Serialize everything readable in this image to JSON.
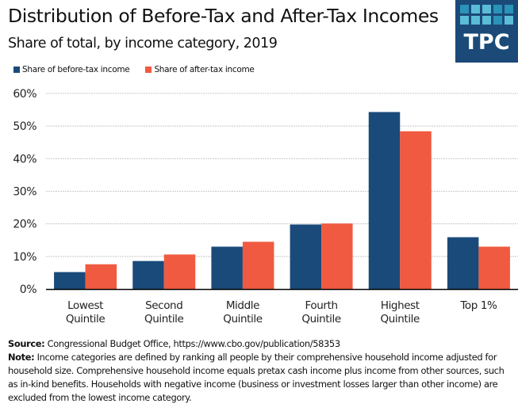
{
  "header": {
    "title": "Distribution of Before-Tax and After-Tax Incomes",
    "subtitle": "Share of total, by income category, 2019"
  },
  "logo": {
    "text": "TPC",
    "icon": "tpc-grid-logo",
    "background": "#1b4a78",
    "tile_colors": [
      "#2a93b8",
      "#5bbcd8",
      "#5bbcd8",
      "#2a93b8",
      "#2a93b8",
      "#5bbcd8",
      "#5bbcd8",
      "#5bbcd8",
      "#2a93b8",
      "#5bbcd8"
    ]
  },
  "colors": {
    "before_tax": "#1a4a7a",
    "after_tax": "#f05a40",
    "grid": "#c8c8c8",
    "axis": "#000000"
  },
  "chart_data": {
    "type": "bar",
    "title": "Distribution of Before-Tax and After-Tax Incomes",
    "subtitle": "Share of total, by income category, 2019",
    "xlabel": "",
    "ylabel": "",
    "categories": [
      "Lowest Quintile",
      "Second Quintile",
      "Middle Quintile",
      "Fourth Quintile",
      "Highest Quintile",
      "Top 1%"
    ],
    "category_lines": [
      [
        "Lowest",
        "Quintile"
      ],
      [
        "Second",
        "Quintile"
      ],
      [
        "Middle",
        "Quintile"
      ],
      [
        "Fourth",
        "Quintile"
      ],
      [
        "Highest",
        "Quintile"
      ],
      [
        "Top 1%"
      ]
    ],
    "series": [
      {
        "name": "Share of before-tax income",
        "values": [
          5.2,
          8.6,
          13.0,
          19.8,
          54.3,
          15.9
        ]
      },
      {
        "name": "Share of after-tax income",
        "values": [
          7.6,
          10.6,
          14.5,
          20.1,
          48.4,
          13.0
        ]
      }
    ],
    "ylim": [
      0,
      60
    ],
    "yticks": [
      0,
      10,
      20,
      30,
      40,
      50,
      60
    ],
    "ytick_labels": [
      "0%",
      "10%",
      "20%",
      "30%",
      "40%",
      "50%",
      "60%"
    ],
    "grid": true,
    "grid_style": "dotted horizontal",
    "legend_position": "top-left"
  },
  "footer": {
    "source_label": "Source:",
    "source_text": " Congressional Budget Office,  https://www.cbo.gov/publication/58353",
    "note_label": "Note:",
    "note_text": " Income categories are defined by ranking all people by their comprehensive household income adjusted for household size. Comprehensive household income equals pretax cash income plus income from other sources, such as in-kind benefits. Households with negative income (business or investment losses larger than other income) are excluded from the lowest income category."
  }
}
